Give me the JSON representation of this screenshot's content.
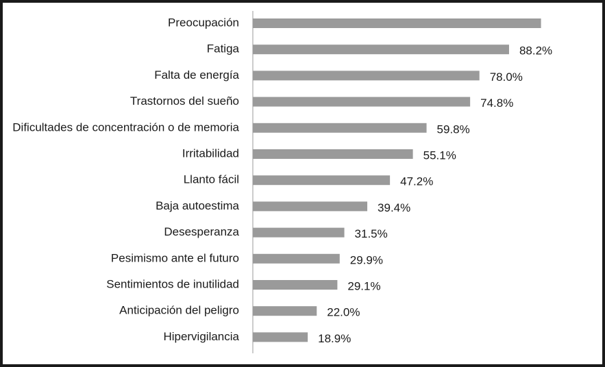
{
  "chart_data": {
    "type": "bar",
    "orientation": "horizontal",
    "categories": [
      "Preocupación",
      "Fatiga",
      "Falta de energía",
      "Trastornos del sueño",
      "Dificultades de concentración o de memoria",
      "Irritabilidad",
      "Llanto fácil",
      "Baja autoestima",
      "Desesperanza",
      "Pesimismo ante el futuro",
      "Sentimientos de inutilidad",
      "Anticipación del peligro",
      "Hipervigilancia"
    ],
    "values": [
      99.2,
      88.2,
      78.0,
      74.8,
      59.8,
      55.1,
      47.2,
      39.4,
      31.5,
      29.9,
      29.1,
      22.0,
      18.9
    ],
    "value_labels": [
      "",
      "88.2%",
      "78.0%",
      "74.8%",
      "59.8%",
      "55.1%",
      "47.2%",
      "39.4%",
      "31.5%",
      "29.9%",
      "29.1%",
      "22.0%",
      "18.9%"
    ],
    "title": "",
    "xlabel": "",
    "ylabel": "",
    "xlim": [
      0,
      100
    ],
    "grid": false,
    "bar_color": "#9a9a9a",
    "axis_color": "#9a9a9a"
  }
}
